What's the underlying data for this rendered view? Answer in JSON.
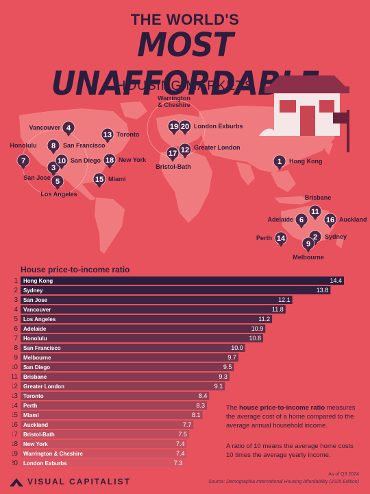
{
  "header": {
    "title_top": "THE WORLD'S",
    "title_main": "MOST UNAFFORDABLE",
    "title_sub": "HOUSING MARKETS"
  },
  "colors": {
    "background": "#e8525c",
    "bar_dark": "#2b1d3d",
    "bar_light": "#d45563",
    "pin": "#4a2747",
    "land": "#f07b7f"
  },
  "map_pins": [
    {
      "rank": "1",
      "label": "Hong Kong"
    },
    {
      "rank": "2",
      "label": "Sydney"
    },
    {
      "rank": "3",
      "label": "San Jose"
    },
    {
      "rank": "4",
      "label": "Vancouver"
    },
    {
      "rank": "5",
      "label": "Los Angeles"
    },
    {
      "rank": "6",
      "label": "Adelaide"
    },
    {
      "rank": "7",
      "label": "Honolulu"
    },
    {
      "rank": "8",
      "label": "San Francisco"
    },
    {
      "rank": "9",
      "label": "Melbourne"
    },
    {
      "rank": "10",
      "label": "San Diego"
    },
    {
      "rank": "11",
      "label": "Brisbane"
    },
    {
      "rank": "12",
      "label": "Greater London"
    },
    {
      "rank": "13",
      "label": "Toronto"
    },
    {
      "rank": "14",
      "label": "Perth"
    },
    {
      "rank": "15",
      "label": "Miami"
    },
    {
      "rank": "16",
      "label": "Auckland"
    },
    {
      "rank": "17",
      "label": "Bristol-Bath"
    },
    {
      "rank": "18",
      "label": "New York"
    },
    {
      "rank": "19",
      "label": "Warrington\n& Cheshire"
    },
    {
      "rank": "20",
      "label": "London Exburbs"
    }
  ],
  "chart_data": {
    "type": "bar",
    "orientation": "horizontal",
    "title": "House price-to-income ratio",
    "ranks": [
      "1",
      "2",
      "3",
      "4",
      "5",
      "6",
      "7",
      "8",
      "9",
      "10",
      "11",
      "12",
      "13",
      "14",
      "15",
      "16",
      "17",
      "18",
      "19",
      "20"
    ],
    "categories": [
      "Hong Kong",
      "Sydney",
      "San Jose",
      "Vancouver",
      "Los Angeles",
      "Adelaide",
      "Honolulu",
      "San Francisco",
      "Melbourne",
      "San Diego",
      "Brisbane",
      "Greater London",
      "Toronto",
      "Perth",
      "Miami",
      "Auckland",
      "Bristol-Bath",
      "New York",
      "Warrington & Cheshire",
      "London Exburbs"
    ],
    "values": [
      14.4,
      13.8,
      12.1,
      11.8,
      11.2,
      10.9,
      10.8,
      10.0,
      9.7,
      9.5,
      9.3,
      9.1,
      8.4,
      8.3,
      8.1,
      7.7,
      7.5,
      7.4,
      7.4,
      7.3
    ],
    "value_labels": [
      "14.4",
      "13.8",
      "12.1",
      "11.8",
      "11.2",
      "10.9",
      "10.8",
      "10.0",
      "9.7",
      "9.5",
      "9.3",
      "9.1",
      "8.4",
      "8.3",
      "8.1",
      "7.7",
      "7.5",
      "7.4",
      "7.4",
      "7.3"
    ],
    "xlim": [
      0,
      14.4
    ],
    "grid": false,
    "legend": "none"
  },
  "notes": {
    "note1_pre": "The ",
    "note1_bold": "house price-to-income ratio",
    "note1_post": " measures the average cost of a home compared to the average annual household income.",
    "note2": "A ratio of 10 means the average home costs 10 times the average yearly income."
  },
  "footer": {
    "brand": "VISUAL CAPITALIST",
    "date": "As of Q3 2024",
    "source": "Source: Demographia International Housing Affordability (2025 Edition)"
  }
}
